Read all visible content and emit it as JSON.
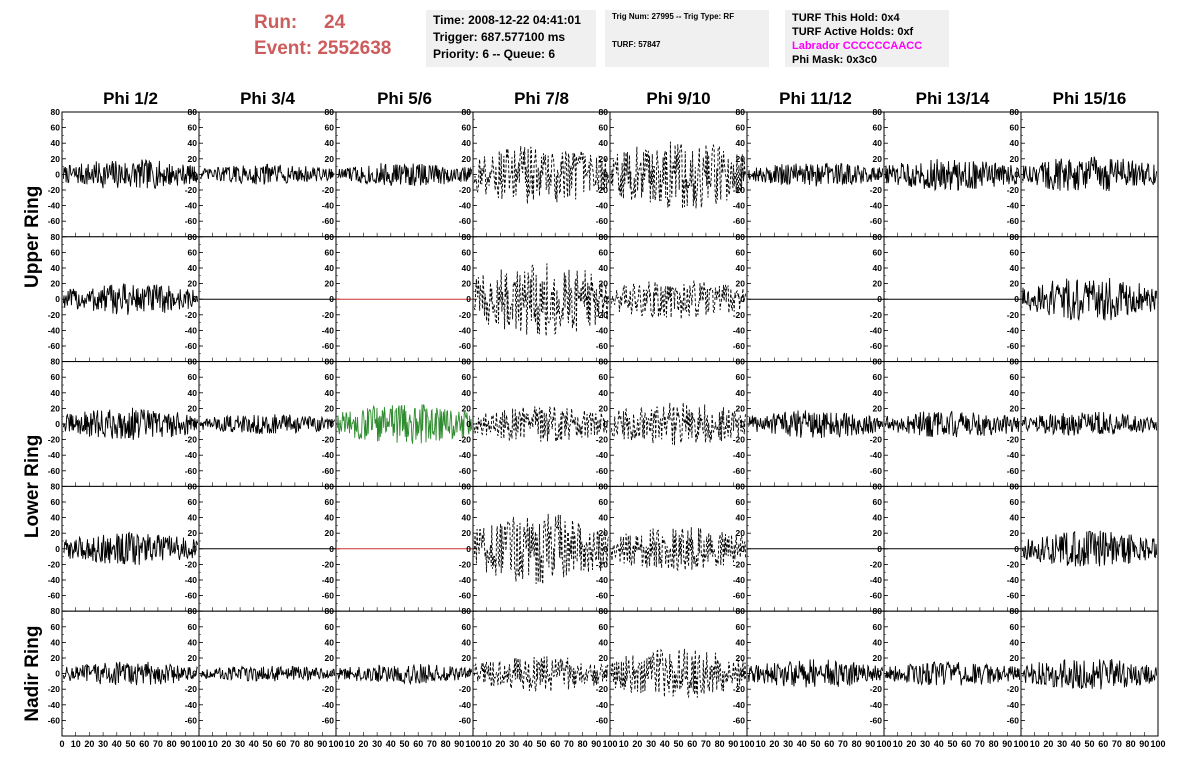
{
  "header": {
    "run_label": "Run:",
    "run_value": "24",
    "event_label": "Event:",
    "event_value": "2552638",
    "time": "Time: 2008-12-22 04:41:01",
    "trigger": "Trigger: 687.577100 ms",
    "priority": "Priority: 6 -- Queue: 6",
    "trig_num": "Trig Num: 27995 -- Trig Type: RF",
    "turf": "TURF: 57847",
    "turf_hold": "TURF This Hold: 0x4",
    "turf_active": "TURF Active Holds: 0xf",
    "labrador": "Labrador CCCCCCAACC",
    "phi_mask": "Phi Mask: 0x3c0",
    "labrador_color": "#ff00ff",
    "run_color": "#cd5c5c"
  },
  "chart_data": {
    "type": "line",
    "columns": [
      "Phi 1/2",
      "Phi 3/4",
      "Phi 5/6",
      "Phi 7/8",
      "Phi 9/10",
      "Phi 11/12",
      "Phi 13/14",
      "Phi 15/16"
    ],
    "ring_labels": [
      "Upper Ring",
      "Lower Ring",
      "Nadir Ring"
    ],
    "ylim": [
      -80,
      80
    ],
    "yticks": [
      -60,
      -40,
      -20,
      0,
      20,
      40,
      60,
      80
    ],
    "xlim": [
      0,
      100
    ],
    "xticks": [
      0,
      10,
      20,
      30,
      40,
      50,
      60,
      70,
      80,
      90,
      100
    ],
    "rows": [
      [
        {
          "style": "solid",
          "color": "#000000",
          "amplitude": 15
        },
        {
          "style": "solid",
          "color": "#000000",
          "amplitude": 10
        },
        {
          "style": "solid",
          "color": "#000000",
          "amplitude": 12
        },
        {
          "style": "dashed",
          "color": "#000000",
          "amplitude": 30
        },
        {
          "style": "dashed",
          "color": "#000000",
          "amplitude": 35
        },
        {
          "style": "solid",
          "color": "#000000",
          "amplitude": 12
        },
        {
          "style": "solid",
          "color": "#000000",
          "amplitude": 16
        },
        {
          "style": "solid",
          "color": "#000000",
          "amplitude": 18
        }
      ],
      [
        {
          "style": "solid",
          "color": "#000000",
          "amplitude": 16
        },
        {
          "style": "flat",
          "color": "#000000",
          "amplitude": 0
        },
        {
          "style": "flat",
          "color": "#cc3333",
          "amplitude": 0
        },
        {
          "style": "dashed",
          "color": "#000000",
          "amplitude": 38
        },
        {
          "style": "dashed",
          "color": "#000000",
          "amplitude": 20
        },
        {
          "style": "flat",
          "color": "#000000",
          "amplitude": 0
        },
        {
          "style": "flat",
          "color": "#000000",
          "amplitude": 0
        },
        {
          "style": "solid",
          "color": "#000000",
          "amplitude": 22
        }
      ],
      [
        {
          "style": "solid",
          "color": "#000000",
          "amplitude": 16
        },
        {
          "style": "solid",
          "color": "#000000",
          "amplitude": 10
        },
        {
          "style": "solid",
          "color": "#2e8b2e",
          "amplitude": 20
        },
        {
          "style": "dashed",
          "color": "#000000",
          "amplitude": 18
        },
        {
          "style": "dashed",
          "color": "#000000",
          "amplitude": 22
        },
        {
          "style": "solid",
          "color": "#000000",
          "amplitude": 14
        },
        {
          "style": "solid",
          "color": "#000000",
          "amplitude": 14
        },
        {
          "style": "solid",
          "color": "#000000",
          "amplitude": 12
        }
      ],
      [
        {
          "style": "solid",
          "color": "#000000",
          "amplitude": 16
        },
        {
          "style": "flat",
          "color": "#000000",
          "amplitude": 0
        },
        {
          "style": "flat",
          "color": "#cc3333",
          "amplitude": 0
        },
        {
          "style": "dashed",
          "color": "#000000",
          "amplitude": 35
        },
        {
          "style": "dashed",
          "color": "#000000",
          "amplitude": 22
        },
        {
          "style": "flat",
          "color": "#000000",
          "amplitude": 0
        },
        {
          "style": "flat",
          "color": "#000000",
          "amplitude": 0
        },
        {
          "style": "solid",
          "color": "#000000",
          "amplitude": 18
        }
      ],
      [
        {
          "style": "solid",
          "color": "#000000",
          "amplitude": 12
        },
        {
          "style": "solid",
          "color": "#000000",
          "amplitude": 8
        },
        {
          "style": "solid",
          "color": "#000000",
          "amplitude": 10
        },
        {
          "style": "dashed",
          "color": "#000000",
          "amplitude": 18
        },
        {
          "style": "dashed",
          "color": "#000000",
          "amplitude": 25
        },
        {
          "style": "solid",
          "color": "#000000",
          "amplitude": 14
        },
        {
          "style": "solid",
          "color": "#000000",
          "amplitude": 12
        },
        {
          "style": "solid",
          "color": "#000000",
          "amplitude": 16
        }
      ]
    ]
  }
}
